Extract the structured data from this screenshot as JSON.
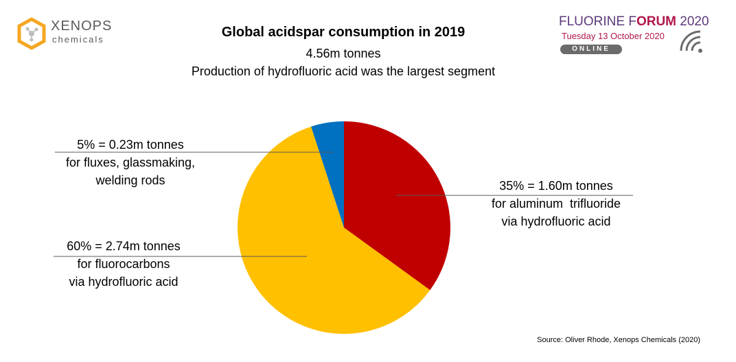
{
  "header": {
    "title": "Global acidspar consumption in 2019",
    "subtitle_line1": "4.56m tonnes",
    "subtitle_line2": "Production of hydrofluoric acid was the largest segment"
  },
  "logo_left": {
    "name": "XENOPS",
    "sub": "chemicals"
  },
  "logo_right": {
    "line1_a": "FLUORINE F",
    "line1_b": "ORUM",
    "line1_c": " 2020",
    "line2": "Tuesday 13 October 2020",
    "badge": "ONLINE"
  },
  "labels": {
    "flux": [
      "5% = 0.23m tonnes",
      "for fluxes, glassmaking,",
      "welding rods"
    ],
    "fluoro": [
      "60% = 2.74m tonnes",
      "for fluorocarbons",
      "via hydrofluoric acid"
    ],
    "alum": [
      "35% = 1.60m tonnes",
      "for aluminum  trifluoride",
      "via hydrofluoric acid"
    ]
  },
  "source": "Source: Oliver Rhode, Xenops Chemicals (2020)",
  "chart_data": {
    "type": "pie",
    "title": "Global acidspar consumption in 2019",
    "total": "4.56m tonnes",
    "start_angle_deg": 0,
    "direction": "clockwise",
    "slices": [
      {
        "label": "35% = 1.60m tonnes for aluminum trifluoride via hydrofluoric acid",
        "percent": 35,
        "value_mt": 1.6,
        "color": "#c00000"
      },
      {
        "label": "60% = 2.74m tonnes for fluorocarbons via hydrofluoric acid",
        "percent": 60,
        "value_mt": 2.74,
        "color": "#ffc000"
      },
      {
        "label": "5% = 0.23m tonnes for fluxes, glassmaking, welding rods",
        "percent": 5,
        "value_mt": 0.23,
        "color": "#0070c0"
      }
    ]
  }
}
